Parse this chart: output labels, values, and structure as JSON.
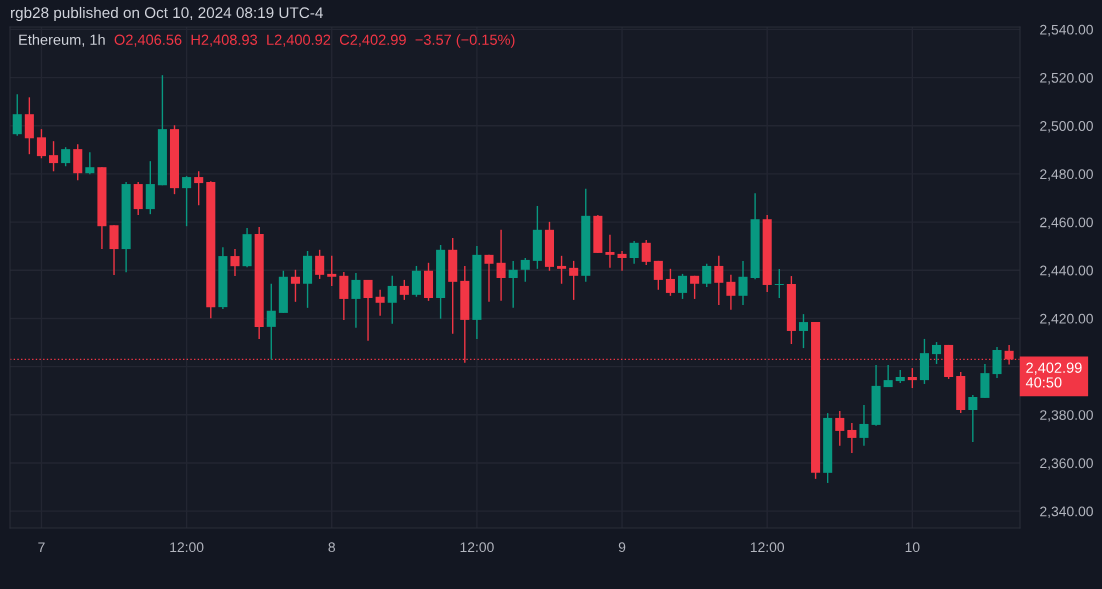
{
  "chart_data": {
    "type": "candlestick",
    "title": "Ethereum, 1h",
    "subtitle": "rgb28 published on Oct 10, 2024 08:19 UTC-4",
    "annotations": [
      "O2,406.56",
      "H2,408.93",
      "L2,400.92",
      "C2,402.99",
      "−3.57 (−0.15%)"
    ],
    "x": [
      "2024-10-06T22:00",
      "2024-10-06T23:00",
      "2024-10-07T00:00",
      "2024-10-07T01:00",
      "2024-10-07T02:00",
      "2024-10-07T03:00",
      "2024-10-07T04:00",
      "2024-10-07T05:00",
      "2024-10-07T06:00",
      "2024-10-07T07:00",
      "2024-10-07T08:00",
      "2024-10-07T09:00",
      "2024-10-07T10:00",
      "2024-10-07T11:00",
      "2024-10-07T12:00",
      "2024-10-07T13:00",
      "2024-10-07T14:00",
      "2024-10-07T15:00",
      "2024-10-07T16:00",
      "2024-10-07T17:00",
      "2024-10-07T18:00",
      "2024-10-07T19:00",
      "2024-10-07T20:00",
      "2024-10-07T21:00",
      "2024-10-07T22:00",
      "2024-10-07T23:00",
      "2024-10-08T00:00",
      "2024-10-08T01:00",
      "2024-10-08T02:00",
      "2024-10-08T03:00",
      "2024-10-08T04:00",
      "2024-10-08T05:00",
      "2024-10-08T06:00",
      "2024-10-08T07:00",
      "2024-10-08T08:00",
      "2024-10-08T09:00",
      "2024-10-08T10:00",
      "2024-10-08T11:00",
      "2024-10-08T12:00",
      "2024-10-08T13:00",
      "2024-10-08T14:00",
      "2024-10-08T15:00",
      "2024-10-08T16:00",
      "2024-10-08T17:00",
      "2024-10-08T18:00",
      "2024-10-08T19:00",
      "2024-10-08T20:00",
      "2024-10-08T21:00",
      "2024-10-08T22:00",
      "2024-10-08T23:00",
      "2024-10-09T00:00",
      "2024-10-09T01:00",
      "2024-10-09T02:00",
      "2024-10-09T03:00",
      "2024-10-09T04:00",
      "2024-10-09T05:00",
      "2024-10-09T06:00",
      "2024-10-09T07:00",
      "2024-10-09T08:00",
      "2024-10-09T09:00",
      "2024-10-09T10:00",
      "2024-10-09T11:00",
      "2024-10-09T12:00",
      "2024-10-09T13:00",
      "2024-10-09T14:00",
      "2024-10-09T15:00",
      "2024-10-09T16:00",
      "2024-10-09T17:00",
      "2024-10-09T18:00",
      "2024-10-09T19:00",
      "2024-10-09T20:00",
      "2024-10-09T21:00",
      "2024-10-09T22:00",
      "2024-10-09T23:00",
      "2024-10-10T00:00",
      "2024-10-10T01:00",
      "2024-10-10T02:00",
      "2024-10-10T03:00",
      "2024-10-10T04:00",
      "2024-10-10T05:00",
      "2024-10-10T06:00",
      "2024-10-10T07:00",
      "2024-10-10T08:00"
    ],
    "ohlc": [
      [
        2496.5,
        2513.1,
        2495.8,
        2504.8
      ],
      [
        2504.8,
        2511.8,
        2488.2,
        2494.8
      ],
      [
        2495.2,
        2498.6,
        2486.5,
        2487.4
      ],
      [
        2487.8,
        2493.6,
        2481.1,
        2484.5
      ],
      [
        2484.5,
        2491.1,
        2483.2,
        2490.3
      ],
      [
        2490.3,
        2492.3,
        2477.4,
        2480.3
      ],
      [
        2480.3,
        2489.0,
        2479.9,
        2482.8
      ],
      [
        2482.8,
        2482.8,
        2448.8,
        2458.3
      ],
      [
        2458.7,
        2458.7,
        2438.0,
        2448.8
      ],
      [
        2448.8,
        2476.6,
        2439.2,
        2475.8
      ],
      [
        2475.8,
        2476.6,
        2462.9,
        2465.4
      ],
      [
        2465.4,
        2485.3,
        2463.3,
        2475.8
      ],
      [
        2475.3,
        2521.0,
        2475.3,
        2498.6
      ],
      [
        2498.6,
        2500.2,
        2471.6,
        2474.1
      ],
      [
        2474.1,
        2479.1,
        2458.3,
        2478.7
      ],
      [
        2478.7,
        2481.1,
        2467.0,
        2476.2
      ],
      [
        2476.6,
        2477.0,
        2420.1,
        2424.7
      ],
      [
        2424.7,
        2449.6,
        2423.9,
        2445.9
      ],
      [
        2445.9,
        2448.8,
        2437.6,
        2441.7
      ],
      [
        2441.7,
        2457.5,
        2441.3,
        2455.0
      ],
      [
        2455.1,
        2458.0,
        2411.5,
        2416.5
      ],
      [
        2416.5,
        2434.4,
        2403.0,
        2423.2
      ],
      [
        2422.3,
        2439.8,
        2422.3,
        2437.3
      ],
      [
        2437.3,
        2440.2,
        2426.9,
        2434.4
      ],
      [
        2434.4,
        2448.0,
        2424.4,
        2446.0
      ],
      [
        2446.0,
        2448.5,
        2436.4,
        2438.1
      ],
      [
        2438.5,
        2446.0,
        2433.5,
        2437.3
      ],
      [
        2437.7,
        2439.3,
        2419.4,
        2428.1
      ],
      [
        2428.1,
        2438.9,
        2416.1,
        2436.0
      ],
      [
        2436.0,
        2436.0,
        2410.7,
        2428.5
      ],
      [
        2429.0,
        2431.9,
        2421.1,
        2426.5
      ],
      [
        2426.5,
        2437.7,
        2417.8,
        2433.5
      ],
      [
        2433.5,
        2436.0,
        2427.7,
        2429.8
      ],
      [
        2429.8,
        2441.8,
        2429.0,
        2439.8
      ],
      [
        2439.8,
        2443.1,
        2427.3,
        2428.5
      ],
      [
        2428.5,
        2450.5,
        2419.9,
        2448.5
      ],
      [
        2448.5,
        2453.4,
        2413.6,
        2435.2
      ],
      [
        2435.6,
        2441.8,
        2401.6,
        2419.4
      ],
      [
        2419.4,
        2450.1,
        2411.5,
        2446.4
      ],
      [
        2446.4,
        2446.4,
        2426.9,
        2442.7
      ],
      [
        2443.1,
        2456.8,
        2427.3,
        2436.8
      ],
      [
        2436.8,
        2443.9,
        2424.4,
        2440.2
      ],
      [
        2440.2,
        2445.1,
        2435.2,
        2444.3
      ],
      [
        2443.9,
        2466.7,
        2440.6,
        2456.8
      ],
      [
        2456.8,
        2460.1,
        2439.8,
        2441.4
      ],
      [
        2441.8,
        2446.0,
        2434.4,
        2440.6
      ],
      [
        2441.0,
        2443.9,
        2427.7,
        2437.7
      ],
      [
        2437.7,
        2473.8,
        2435.2,
        2462.6
      ],
      [
        2462.6,
        2463.0,
        2447.2,
        2447.2
      ],
      [
        2447.6,
        2454.7,
        2441.0,
        2446.4
      ],
      [
        2446.8,
        2448.0,
        2439.8,
        2445.1
      ],
      [
        2445.1,
        2452.2,
        2442.7,
        2451.4
      ],
      [
        2451.4,
        2452.6,
        2442.2,
        2443.5
      ],
      [
        2443.9,
        2443.9,
        2431.9,
        2436.0
      ],
      [
        2436.4,
        2440.6,
        2429.4,
        2430.6
      ],
      [
        2430.6,
        2438.5,
        2428.1,
        2437.7
      ],
      [
        2437.7,
        2437.7,
        2428.1,
        2434.4
      ],
      [
        2434.4,
        2442.7,
        2433.1,
        2441.8
      ],
      [
        2441.8,
        2446.0,
        2425.6,
        2434.8
      ],
      [
        2435.2,
        2438.1,
        2423.6,
        2429.4
      ],
      [
        2429.4,
        2443.9,
        2425.6,
        2437.3
      ],
      [
        2436.8,
        2472.0,
        2436.3,
        2461.2
      ],
      [
        2461.2,
        2462.9,
        2431.0,
        2433.9
      ],
      [
        2433.9,
        2440.5,
        2428.5,
        2434.3
      ],
      [
        2434.3,
        2437.6,
        2409.4,
        2414.8
      ],
      [
        2414.8,
        2421.8,
        2407.7,
        2418.5
      ],
      [
        2418.5,
        2418.5,
        2353.4,
        2355.9
      ],
      [
        2355.9,
        2380.7,
        2351.7,
        2378.7
      ],
      [
        2378.7,
        2381.6,
        2367.1,
        2373.3
      ],
      [
        2373.7,
        2376.6,
        2364.1,
        2370.4
      ],
      [
        2370.4,
        2384.1,
        2367.1,
        2376.2
      ],
      [
        2375.8,
        2400.7,
        2375.4,
        2392.0
      ],
      [
        2391.5,
        2400.7,
        2391.5,
        2394.4
      ],
      [
        2394.0,
        2398.6,
        2393.2,
        2395.7
      ],
      [
        2395.7,
        2399.4,
        2391.1,
        2394.4
      ],
      [
        2394.4,
        2411.5,
        2392.8,
        2405.6
      ],
      [
        2405.2,
        2410.2,
        2401.1,
        2409.0
      ],
      [
        2409.0,
        2409.0,
        2394.9,
        2395.7
      ],
      [
        2396.1,
        2397.8,
        2380.7,
        2382.0
      ],
      [
        2382.0,
        2388.2,
        2368.7,
        2387.4
      ],
      [
        2387.0,
        2401.1,
        2387.0,
        2397.3
      ],
      [
        2396.9,
        2408.1,
        2395.3,
        2406.9
      ],
      [
        2406.56,
        2408.93,
        2400.92,
        2402.99
      ]
    ],
    "colors": [
      "#089981",
      "#f23645",
      "#f23645",
      "#f23645",
      "#089981",
      "#f23645",
      "#089981",
      "#f23645",
      "#f23645",
      "#089981",
      "#f23645",
      "#089981",
      "#089981",
      "#f23645",
      "#089981",
      "#f23645",
      "#f23645",
      "#089981",
      "#f23645",
      "#089981",
      "#f23645",
      "#089981",
      "#089981",
      "#f23645",
      "#089981",
      "#f23645",
      "#f23645",
      "#f23645",
      "#089981",
      "#f23645",
      "#f23645",
      "#089981",
      "#f23645",
      "#089981",
      "#f23645",
      "#089981",
      "#f23645",
      "#f23645",
      "#089981",
      "#f23645",
      "#f23645",
      "#089981",
      "#089981",
      "#089981",
      "#f23645",
      "#f23645",
      "#f23645",
      "#089981",
      "#f23645",
      "#f23645",
      "#f23645",
      "#089981",
      "#f23645",
      "#f23645",
      "#f23645",
      "#089981",
      "#f23645",
      "#089981",
      "#f23645",
      "#f23645",
      "#089981",
      "#089981",
      "#f23645",
      "#089981",
      "#f23645",
      "#089981",
      "#f23645",
      "#089981",
      "#f23645",
      "#f23645",
      "#089981",
      "#089981",
      "#089981",
      "#089981",
      "#f23645",
      "#089981",
      "#089981",
      "#f23645",
      "#f23645",
      "#089981",
      "#089981",
      "#089981",
      "#f23645"
    ],
    "xlim": [
      "2024-10-06T21:24",
      "2024-10-10T08:54"
    ],
    "xticks": [
      {
        "value": "2024-10-07T00:00",
        "label": "7"
      },
      {
        "value": "2024-10-07T12:00",
        "label": "12:00"
      },
      {
        "value": "2024-10-08T00:00",
        "label": "8"
      },
      {
        "value": "2024-10-08T12:00",
        "label": "12:00"
      },
      {
        "value": "2024-10-09T00:00",
        "label": "9"
      },
      {
        "value": "2024-10-09T12:00",
        "label": "12:00"
      },
      {
        "value": "2024-10-10T00:00",
        "label": "10"
      }
    ],
    "ylim": [
      2333,
      2541
    ],
    "yticks": [
      {
        "value": 2340,
        "label": "2,340.00"
      },
      {
        "value": 2360,
        "label": "2,360.00"
      },
      {
        "value": 2380,
        "label": "2,380.00"
      },
      {
        "value": 2400,
        "label": null
      },
      {
        "value": 2420,
        "label": "2,420.00"
      },
      {
        "value": 2440,
        "label": "2,440.00"
      },
      {
        "value": 2460,
        "label": "2,460.00"
      },
      {
        "value": 2480,
        "label": "2,480.00"
      },
      {
        "value": 2500,
        "label": "2,500.00"
      },
      {
        "value": 2520,
        "label": "2,520.00"
      },
      {
        "value": 2540,
        "label": "2,540.00"
      }
    ],
    "ref_lines": [
      {
        "axis": "y",
        "value": 2402.99,
        "label": "2,402.99\n40:50",
        "color": "#f23645",
        "line_style": "dotted"
      }
    ],
    "grid": true,
    "legend": false
  }
}
